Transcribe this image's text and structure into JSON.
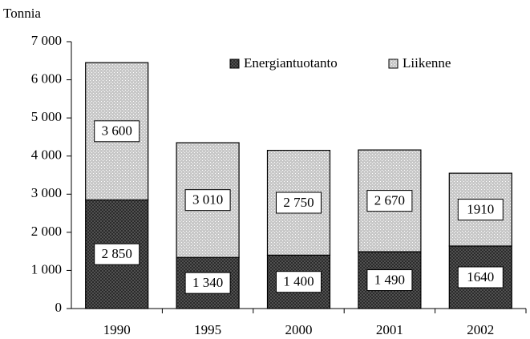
{
  "chart_data": {
    "type": "stacked_bar",
    "y_label": "Tonnia",
    "categories": [
      "1990",
      "1995",
      "2000",
      "2001",
      "2002"
    ],
    "series": [
      {
        "name": "Energiantuotanto",
        "color": "#5a5a5a",
        "values": [
          2850,
          1340,
          1400,
          1490,
          1640
        ],
        "value_labels": [
          "2 850",
          "1 340",
          "1 400",
          "1 490",
          "1640"
        ]
      },
      {
        "name": "Liikenne",
        "color": "#c8c8c8",
        "values": [
          3600,
          3010,
          2750,
          2670,
          1910
        ],
        "value_labels": [
          "3 600",
          "3 010",
          "2 750",
          "2 670",
          "1910"
        ]
      }
    ],
    "ylim": [
      0,
      7000
    ],
    "yticks": [
      0,
      {
        "value": 1000,
        "label": "1 000"
      },
      {
        "value": 2000,
        "label": "2 000"
      },
      {
        "value": 3000,
        "label": "3 000"
      },
      {
        "value": 4000,
        "label": "4 000"
      },
      {
        "value": 5000,
        "label": "5 000"
      },
      {
        "value": 6000,
        "label": "6 000"
      },
      {
        "value": 7000,
        "label": "7 000"
      }
    ],
    "legend": "top-right"
  }
}
